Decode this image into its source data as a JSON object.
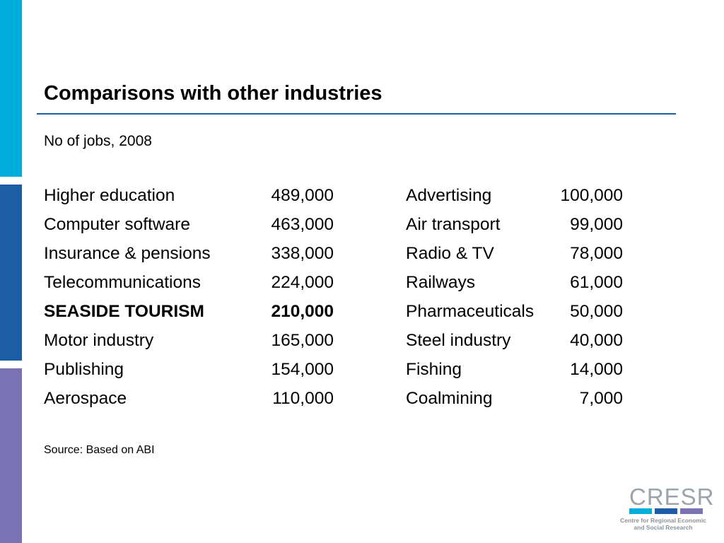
{
  "colors": {
    "bar_top": "#00AEDC",
    "bar_middle": "#1C5EA6",
    "bar_bottom": "#7B72B6",
    "title_rule": "#1C5EA6",
    "logo_text": "#9CA3A9",
    "logo_sub": "#8C9399"
  },
  "title": "Comparisons with other industries",
  "subtitle": "No of jobs, 2008",
  "table": {
    "left": [
      {
        "industry": "Higher education",
        "jobs": "489,000"
      },
      {
        "industry": "Computer software",
        "jobs": "463,000"
      },
      {
        "industry": "Insurance & pensions",
        "jobs": "338,000"
      },
      {
        "industry": "Telecommunications",
        "jobs": "224,000"
      },
      {
        "industry": "SEASIDE TOURISM",
        "jobs": "210,000"
      },
      {
        "industry": "Motor industry",
        "jobs": "165,000"
      },
      {
        "industry": "Publishing",
        "jobs": "154,000"
      },
      {
        "industry": "Aerospace",
        "jobs": "110,000"
      }
    ],
    "right": [
      {
        "industry": "Advertising",
        "jobs": "100,000"
      },
      {
        "industry": "Air transport",
        "jobs": "99,000"
      },
      {
        "industry": "Radio & TV",
        "jobs": "78,000"
      },
      {
        "industry": "Railways",
        "jobs": "61,000"
      },
      {
        "industry": "Pharmaceuticals",
        "jobs": "50,000"
      },
      {
        "industry": "Steel industry",
        "jobs": "40,000"
      },
      {
        "industry": "Fishing",
        "jobs": "14,000"
      },
      {
        "industry": "Coalmining",
        "jobs": "7,000"
      }
    ]
  },
  "source": "Source: Based on ABI",
  "logo": {
    "name": "CRESR",
    "line1": "Centre for Regional Economic",
    "line2": "and Social Research",
    "stripe_colors": [
      "#00AEDC",
      "#1C5EA6",
      "#7B72B6"
    ]
  }
}
